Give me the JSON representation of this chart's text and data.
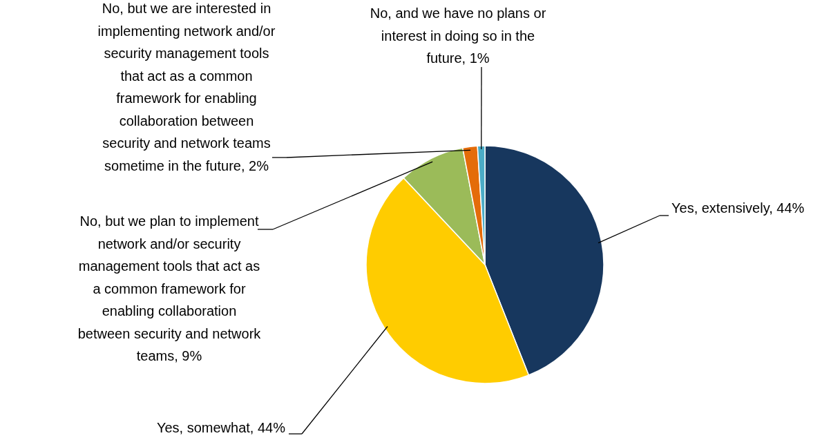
{
  "chart_data": {
    "type": "pie",
    "categories": [
      "Yes, extensively",
      "Yes, somewhat",
      "No, but we plan to implement network and/or security management tools that act as a common framework for enabling collaboration between security and network teams",
      "No, but we are interested in implementing network and/or security management tools that act as a common framework for enabling collaboration between security and network teams sometime in the future",
      "No, and we have no plans or interest in doing so in the future"
    ],
    "values": [
      44,
      44,
      9,
      2,
      1
    ],
    "colors": [
      "#17375e",
      "#ffcc00",
      "#9bbb59",
      "#e46c0a",
      "#4bacc6"
    ],
    "value_labels": [
      "44%",
      "44%",
      "9%",
      "2%",
      "1%"
    ]
  }
}
